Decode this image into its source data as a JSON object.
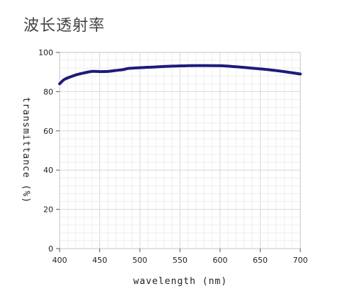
{
  "chart_data": {
    "type": "line",
    "title": "波长透射率",
    "xlabel": "wavelength (nm)",
    "ylabel": "transmittance (%)",
    "xlim": [
      400,
      700
    ],
    "ylim": [
      0,
      100
    ],
    "xticks": [
      400,
      450,
      500,
      550,
      600,
      650,
      700
    ],
    "yticks": [
      0,
      20,
      40,
      60,
      80,
      100
    ],
    "grid": true,
    "line_color": "#1f1a7a",
    "series": [
      {
        "x": [
          400,
          405,
          410,
          420,
          430,
          440,
          450,
          460,
          470,
          480,
          485,
          500,
          520,
          540,
          560,
          580,
          600,
          620,
          640,
          660,
          680,
          700
        ],
        "values": [
          84,
          86,
          87,
          88.5,
          89.5,
          90.3,
          90.2,
          90.3,
          90.8,
          91.3,
          91.8,
          92.2,
          92.6,
          93.0,
          93.2,
          93.3,
          93.2,
          92.7,
          92.0,
          91.2,
          90.2,
          89.0
        ]
      }
    ]
  }
}
